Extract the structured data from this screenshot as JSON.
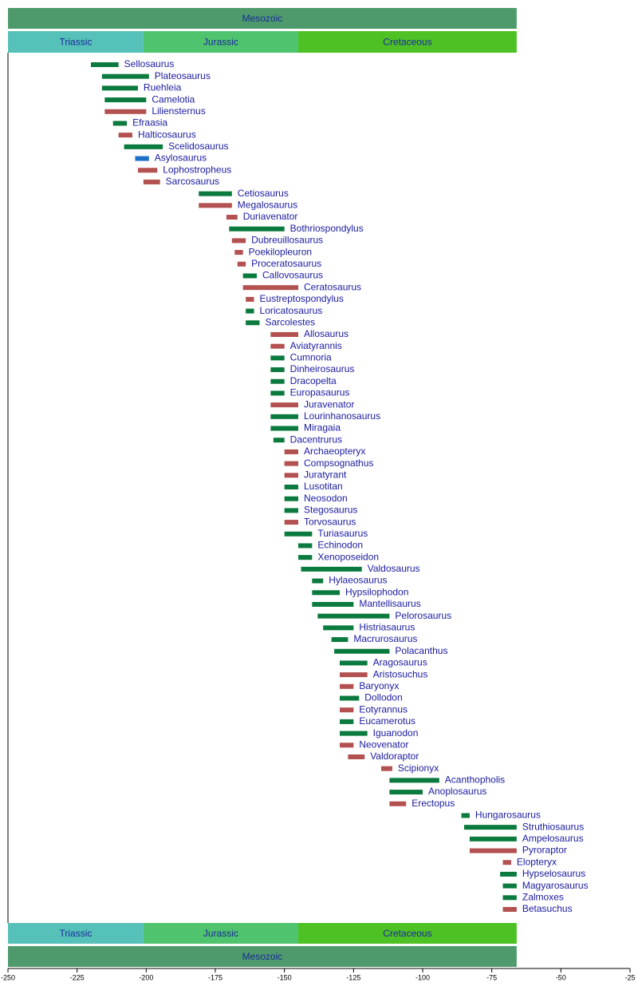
{
  "chart_data": {
    "type": "timeline",
    "xlim": [
      -250,
      -25
    ],
    "xticks": [
      -250,
      -225,
      -200,
      -175,
      -150,
      -125,
      -100,
      -75,
      -50,
      -25
    ],
    "era": {
      "name": "Mesozoic",
      "start": -250,
      "end": -66,
      "color": "#4e9a6c"
    },
    "periods": [
      {
        "name": "Triassic",
        "start": -250,
        "end": -201,
        "color": "#55c1b8"
      },
      {
        "name": "Jurassic",
        "start": -201,
        "end": -145,
        "color": "#4fc36d"
      },
      {
        "name": "Cretaceous",
        "start": -145,
        "end": -66,
        "color": "#4ec124"
      }
    ],
    "categories": [
      "Sellosaurus",
      "Plateosaurus",
      "Ruehleia",
      "Camelotia",
      "Liliensternus",
      "Efraasia",
      "Halticosaurus",
      "Scelidosaurus",
      "Asylosaurus",
      "Lophostropheus",
      "Sarcosaurus",
      "Cetiosaurus",
      "Megalosaurus",
      "Duriavenator",
      "Bothriospondylus",
      "Dubreuillosaurus",
      "Poekilopleuron",
      "Proceratosaurus",
      "Callovosaurus",
      "Ceratosaurus",
      "Eustreptospondylus",
      "Loricatosaurus",
      "Sarcolestes",
      "Allosaurus",
      "Aviatyrannis",
      "Cumnoria",
      "Dinheirosaurus",
      "Dracopelta",
      "Europasaurus",
      "Juravenator",
      "Lourinhanosaurus",
      "Miragaia",
      "Dacentrurus",
      "Archaeopteryx",
      "Compsognathus",
      "Juratyrant",
      "Lusotitan",
      "Neosodon",
      "Stegosaurus",
      "Torvosaurus",
      "Turiasaurus",
      "Echinodon",
      "Xenoposeidon",
      "Valdosaurus",
      "Hylaeosaurus",
      "Hypsilophodon",
      "Mantellisaurus",
      "Pelorosaurus",
      "Histriasaurus",
      "Macrurosaurus",
      "Polacanthus",
      "Aragosaurus",
      "Aristosuchus",
      "Baryonyx",
      "Dollodon",
      "Eotyrannus",
      "Eucamerotus",
      "Iguanodon",
      "Neovenator",
      "Valdoraptor",
      "Scipionyx",
      "Acanthopholis",
      "Anoplosaurus",
      "Erectopus",
      "Hungarosaurus",
      "Struthiosaurus",
      "Ampelosaurus",
      "Pyroraptor",
      "Elopteryx",
      "Hypselosaurus",
      "Magyarosaurus",
      "Zalmoxes",
      "Betasuchus"
    ],
    "start": [
      -220,
      -216,
      -216,
      -215,
      -215,
      -212,
      -210,
      -208,
      -204,
      -203,
      -201,
      -181,
      -181,
      -171,
      -170,
      -169,
      -168,
      -167,
      -165,
      -165,
      -164,
      -164,
      -164,
      -155,
      -155,
      -155,
      -155,
      -155,
      -155,
      -155,
      -155,
      -155,
      -154,
      -150,
      -150,
      -150,
      -150,
      -150,
      -150,
      -150,
      -150,
      -145,
      -145,
      -144,
      -140,
      -140,
      -140,
      -138,
      -136,
      -133,
      -132,
      -130,
      -130,
      -130,
      -130,
      -130,
      -130,
      -130,
      -130,
      -127,
      -115,
      -112,
      -112,
      -112,
      -86,
      -85,
      -83,
      -83,
      -71,
      -72,
      -71,
      -71,
      -71
    ],
    "end": [
      -210,
      -199,
      -203,
      -200,
      -200,
      -207,
      -205,
      -194,
      -199,
      -196,
      -195,
      -169,
      -169,
      -167,
      -150,
      -164,
      -165,
      -164,
      -160,
      -145,
      -161,
      -161,
      -159,
      -145,
      -150,
      -150,
      -150,
      -150,
      -150,
      -145,
      -145,
      -145,
      -150,
      -145,
      -145,
      -145,
      -145,
      -145,
      -145,
      -145,
      -140,
      -140,
      -140,
      -122,
      -136,
      -130,
      -125,
      -112,
      -125,
      -127,
      -112,
      -120,
      -120,
      -125,
      -123,
      -125,
      -125,
      -120,
      -125,
      -121,
      -111,
      -94,
      -100,
      -106,
      -83,
      -66,
      -66,
      -66,
      -68,
      -66,
      -66,
      -66,
      -66
    ],
    "colors": [
      "#0b7a3e",
      "#0b7a3e",
      "#0b7a3e",
      "#0b7a3e",
      "#b35050",
      "#0b7a3e",
      "#b35050",
      "#0b7a3e",
      "#1e6fc8",
      "#b35050",
      "#b35050",
      "#0b7a3e",
      "#b35050",
      "#b35050",
      "#0b7a3e",
      "#b35050",
      "#b35050",
      "#b35050",
      "#0b7a3e",
      "#b35050",
      "#b35050",
      "#0b7a3e",
      "#0b7a3e",
      "#b35050",
      "#b35050",
      "#0b7a3e",
      "#0b7a3e",
      "#0b7a3e",
      "#0b7a3e",
      "#b35050",
      "#0b7a3e",
      "#0b7a3e",
      "#0b7a3e",
      "#b35050",
      "#b35050",
      "#b35050",
      "#0b7a3e",
      "#0b7a3e",
      "#0b7a3e",
      "#b35050",
      "#0b7a3e",
      "#0b7a3e",
      "#0b7a3e",
      "#0b7a3e",
      "#0b7a3e",
      "#0b7a3e",
      "#0b7a3e",
      "#0b7a3e",
      "#0b7a3e",
      "#0b7a3e",
      "#0b7a3e",
      "#0b7a3e",
      "#b35050",
      "#b35050",
      "#0b7a3e",
      "#b35050",
      "#0b7a3e",
      "#0b7a3e",
      "#b35050",
      "#b35050",
      "#b35050",
      "#0b7a3e",
      "#0b7a3e",
      "#b35050",
      "#0b7a3e",
      "#0b7a3e",
      "#0b7a3e",
      "#b35050",
      "#b35050",
      "#0b7a3e",
      "#0b7a3e",
      "#0b7a3e",
      "#b35050"
    ]
  }
}
